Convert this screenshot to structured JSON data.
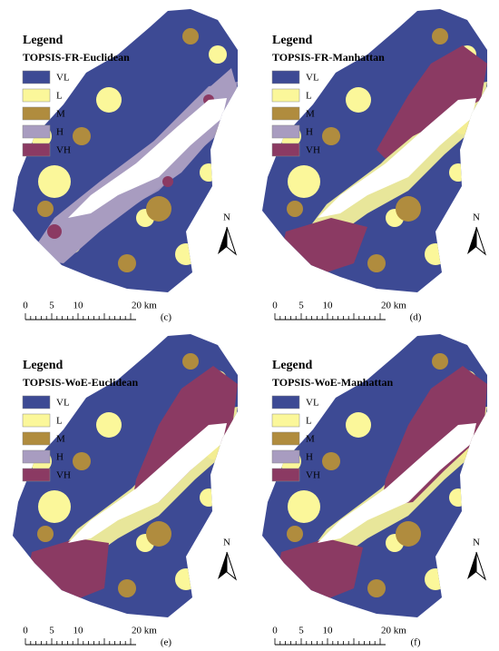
{
  "legend_items": [
    {
      "label": "VL",
      "color": "#3d4a94"
    },
    {
      "label": "L",
      "color": "#fbf79a"
    },
    {
      "label": "M",
      "color": "#b08c3e"
    },
    {
      "label": "H",
      "color": "#a89cc0"
    },
    {
      "label": "VH",
      "color": "#8b3a63"
    }
  ],
  "panels": [
    {
      "legend_heading": "Legend",
      "title": "TOPSIS-FR-Euclidean",
      "north": "N",
      "scale_labels": [
        "0",
        "5",
        "10",
        "20 km"
      ],
      "panel_label": "(c)"
    },
    {
      "legend_heading": "Legend",
      "title": "TOPSIS-FR-Manhattan",
      "north": "N",
      "scale_labels": [
        "0",
        "5",
        "10",
        "20 km"
      ],
      "panel_label": "(d)"
    },
    {
      "legend_heading": "Legend",
      "title": "TOPSIS-WoE-Euclidean",
      "north": "N",
      "scale_labels": [
        "0",
        "5",
        "10",
        "20 km"
      ],
      "panel_label": "(e)"
    },
    {
      "legend_heading": "Legend",
      "title": "TOPSIS-WoE-Manhattan",
      "north": "N",
      "scale_labels": [
        "0",
        "5",
        "10",
        "20 km"
      ],
      "panel_label": "(f)"
    }
  ]
}
